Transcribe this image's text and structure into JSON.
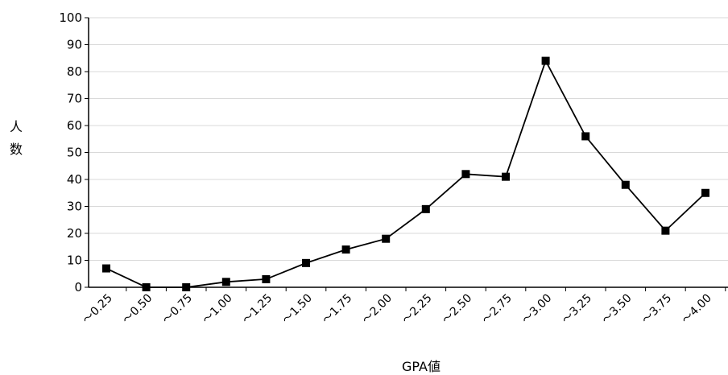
{
  "chart_data": {
    "type": "line",
    "title": "",
    "xlabel": "GPA値",
    "ylabel": "人数",
    "ylim": [
      0,
      100
    ],
    "yticks": [
      0,
      10,
      20,
      30,
      40,
      50,
      60,
      70,
      80,
      90,
      100
    ],
    "grid": true,
    "legend": "none",
    "categories": [
      "～0.25",
      "～0.50",
      "～0.75",
      "～1.00",
      "～1.25",
      "～1.50",
      "～1.75",
      "～2.00",
      "～2.25",
      "～2.50",
      "～2.75",
      "～3.00",
      "～3.25",
      "～3.50",
      "～3.75",
      "～4.00"
    ],
    "series": [
      {
        "values": [
          7,
          0,
          0,
          2,
          3,
          9,
          14,
          18,
          29,
          42,
          41,
          84,
          56,
          38,
          21,
          35
        ],
        "color": "#000000",
        "marker": "square"
      }
    ]
  }
}
